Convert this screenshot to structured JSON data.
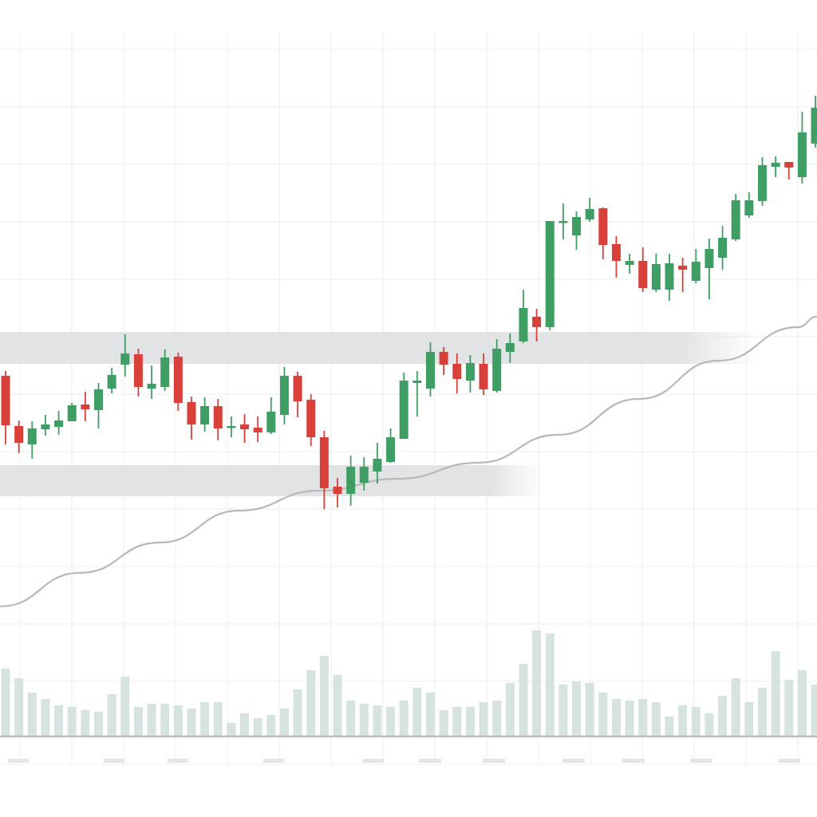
{
  "chart_data": {
    "type": "candlestick",
    "title": "",
    "xlabel": "",
    "ylabel": "",
    "ylim": [
      20,
      94
    ],
    "grid": true,
    "colors": {
      "up": "#3f9e63",
      "down": "#d9403a",
      "volume": "#cfdeda",
      "ma": "#b8b8b8",
      "zone": "#e2e3e5",
      "grid": "#eeeeee",
      "axis": "#bdbdbd"
    },
    "candles_ohlc": [
      [
        52.9,
        53.5,
        44.3,
        46.7
      ],
      [
        46.6,
        47.3,
        43.2,
        44.5
      ],
      [
        44.3,
        47.2,
        42.5,
        46.3
      ],
      [
        46.2,
        48.0,
        45.4,
        46.8
      ],
      [
        46.5,
        48.5,
        45.5,
        47.3
      ],
      [
        47.2,
        49.5,
        47.2,
        49.2
      ],
      [
        49.3,
        50.9,
        47.2,
        48.7
      ],
      [
        48.6,
        52.0,
        46.3,
        51.2
      ],
      [
        51.3,
        53.9,
        50.7,
        53.0
      ],
      [
        54.3,
        58.1,
        52.8,
        55.7
      ],
      [
        55.6,
        56.3,
        50.3,
        51.5
      ],
      [
        51.3,
        54.2,
        50.0,
        51.9
      ],
      [
        51.5,
        56.2,
        51.0,
        55.2
      ],
      [
        55.3,
        55.8,
        48.5,
        49.5
      ],
      [
        49.6,
        50.3,
        44.9,
        46.8
      ],
      [
        46.8,
        50.2,
        45.9,
        49.1
      ],
      [
        49.1,
        50.0,
        44.8,
        46.3
      ],
      [
        46.4,
        47.8,
        45.2,
        46.6
      ],
      [
        46.8,
        48.1,
        44.5,
        46.2
      ],
      [
        46.4,
        47.8,
        44.6,
        45.8
      ],
      [
        45.8,
        50.2,
        45.6,
        48.4
      ],
      [
        48.0,
        54.0,
        46.8,
        52.9
      ],
      [
        52.9,
        53.4,
        47.7,
        49.7
      ],
      [
        49.9,
        50.6,
        44.1,
        45.2
      ],
      [
        45.2,
        46.0,
        36.2,
        38.8
      ],
      [
        39.0,
        40.1,
        36.4,
        38.1
      ],
      [
        38.1,
        42.9,
        36.6,
        41.5
      ],
      [
        39.5,
        42.7,
        38.5,
        41.5
      ],
      [
        40.9,
        44.5,
        39.4,
        42.5
      ],
      [
        42.1,
        46.3,
        42.0,
        45.2
      ],
      [
        45.0,
        53.3,
        45.0,
        52.3
      ],
      [
        52.0,
        53.5,
        47.8,
        52.3
      ],
      [
        51.3,
        57.1,
        50.3,
        55.9
      ],
      [
        55.9,
        56.5,
        53.0,
        54.3
      ],
      [
        54.4,
        55.7,
        50.7,
        52.5
      ],
      [
        52.3,
        55.5,
        50.8,
        54.5
      ],
      [
        54.4,
        55.7,
        50.5,
        51.2
      ],
      [
        51.0,
        57.5,
        50.8,
        56.3
      ],
      [
        55.9,
        58.2,
        54.5,
        57.0
      ],
      [
        57.2,
        63.7,
        57.0,
        61.4
      ],
      [
        60.3,
        61.3,
        57.2,
        59.0
      ],
      [
        59.0,
        72.3,
        58.6,
        72.3
      ],
      [
        72.1,
        74.5,
        70.0,
        72.3
      ],
      [
        70.5,
        73.5,
        68.7,
        72.8
      ],
      [
        72.5,
        75.2,
        72.2,
        73.8
      ],
      [
        73.9,
        74.0,
        67.5,
        69.3
      ],
      [
        69.4,
        70.4,
        65.2,
        67.3
      ],
      [
        66.8,
        68.2,
        65.7,
        67.3
      ],
      [
        67.3,
        69.0,
        63.4,
        63.9
      ],
      [
        63.7,
        68.2,
        63.4,
        66.9
      ],
      [
        63.7,
        68.2,
        62.3,
        67.0
      ],
      [
        66.7,
        67.7,
        63.4,
        66.2
      ],
      [
        64.8,
        68.8,
        64.5,
        67.2
      ],
      [
        66.4,
        70.1,
        62.5,
        68.8
      ],
      [
        67.7,
        71.7,
        66.2,
        70.2
      ],
      [
        70.0,
        75.7,
        69.8,
        74.9
      ],
      [
        73.0,
        75.9,
        72.7,
        74.9
      ],
      [
        74.8,
        80.3,
        74.2,
        79.3
      ],
      [
        79.1,
        80.4,
        77.8,
        79.6
      ],
      [
        79.7,
        79.7,
        77.5,
        79.0
      ],
      [
        77.8,
        86.0,
        77.0,
        83.4
      ],
      [
        82.0,
        88.0,
        81.5,
        86.5
      ]
    ],
    "volume": [
      84,
      72,
      54,
      46,
      38,
      36,
      32,
      30,
      52,
      74,
      36,
      40,
      40,
      38,
      34,
      42,
      42,
      16,
      28,
      22,
      26,
      34,
      58,
      82,
      100,
      76,
      44,
      40,
      38,
      36,
      44,
      60,
      54,
      32,
      36,
      36,
      42,
      44,
      66,
      90,
      132,
      128,
      64,
      68,
      66,
      54,
      46,
      44,
      46,
      42,
      24,
      38,
      36,
      28,
      50,
      72,
      42,
      60,
      106,
      70,
      82,
      64
    ],
    "moving_average": {
      "x": [
        -0.4,
        5.6,
        11.6,
        17.6,
        23.6,
        29.6,
        35.6,
        41.6,
        47.7,
        53.7,
        59.7,
        61.1
      ],
      "y": [
        24,
        28.2,
        32,
        36,
        38.5,
        40,
        42,
        45.5,
        50,
        54.8,
        59,
        60.3
      ]
    },
    "zones": [
      {
        "low": 54.4,
        "high": 58.4,
        "from": -0.5,
        "to": 56.5
      },
      {
        "low": 37.8,
        "high": 41.7,
        "from": -0.5,
        "to": 40.5
      }
    ]
  }
}
